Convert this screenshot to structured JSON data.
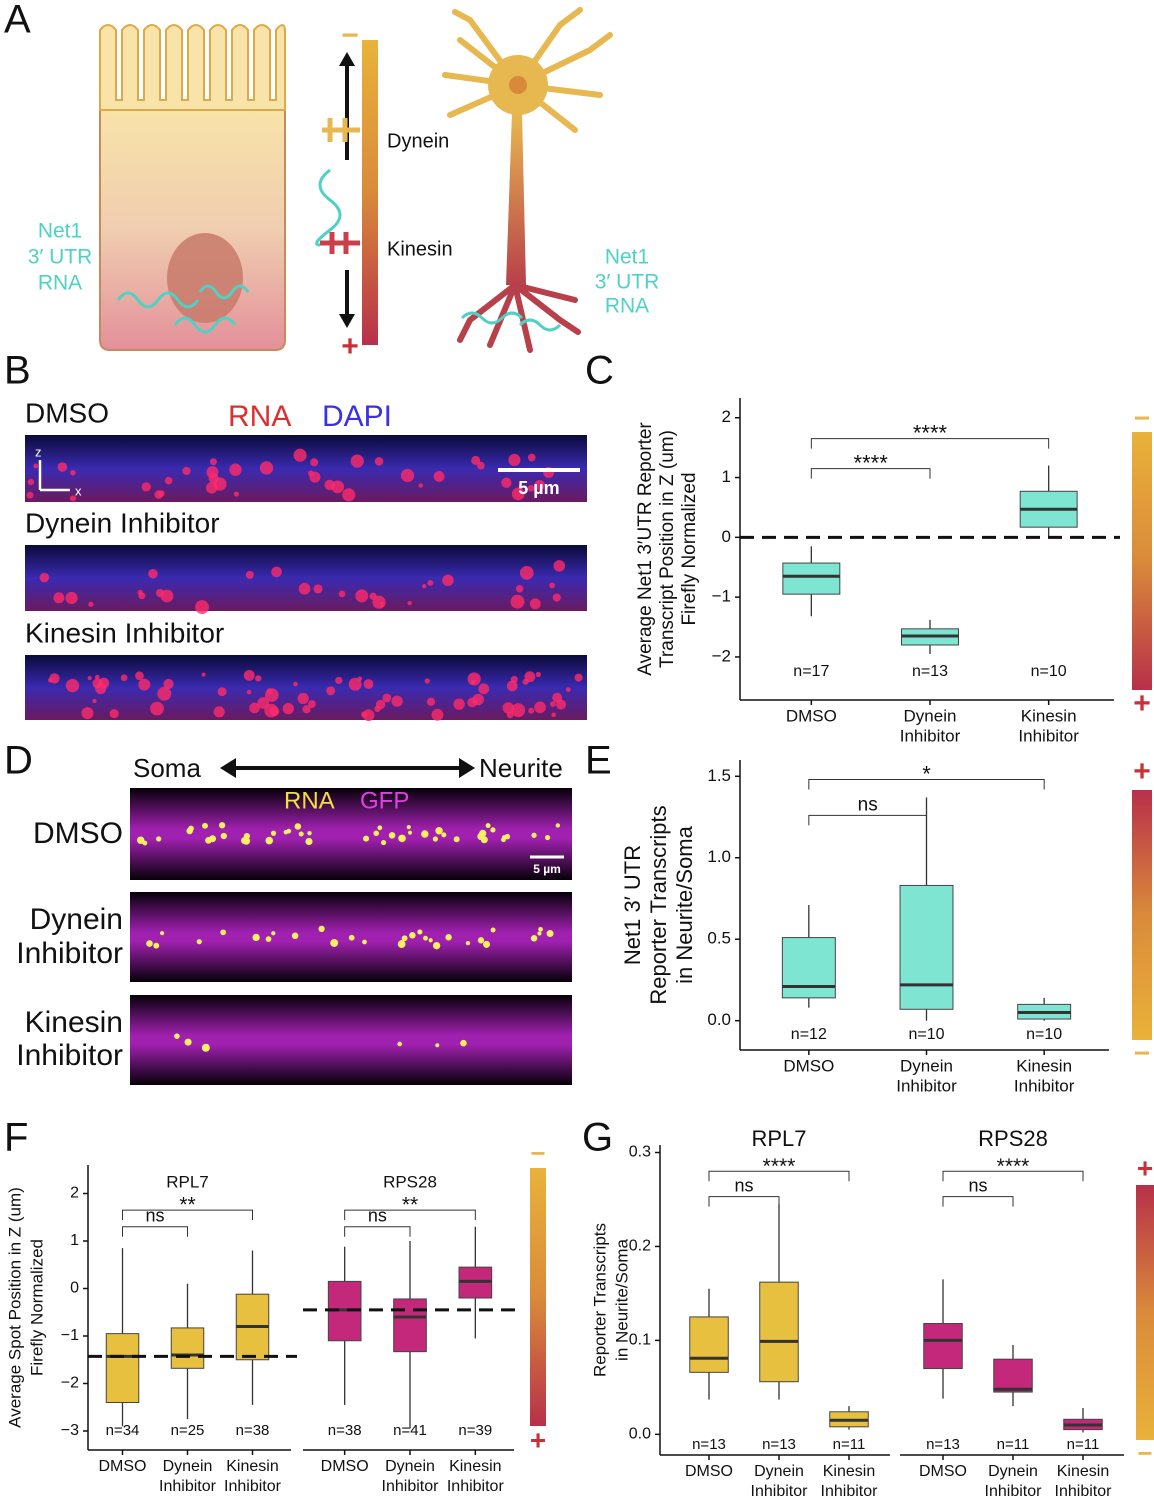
{
  "panel_labels": [
    "A",
    "B",
    "C",
    "D",
    "E",
    "F",
    "G"
  ],
  "panel_a": {
    "rna_label": [
      "Net1",
      "3′ UTR",
      "RNA"
    ],
    "motors": [
      "Dynein",
      "Kinesin"
    ]
  },
  "polarity": {
    "minus": "−",
    "plus": "+"
  },
  "panel_b": {
    "stains": [
      "RNA",
      "DAPI"
    ],
    "conditions": [
      "DMSO",
      "Dynein Inhibitor",
      "Kinesin Inhibitor"
    ],
    "axes": [
      "z",
      "x"
    ],
    "scale_bar": "5 µm"
  },
  "panel_d": {
    "soma": "Soma",
    "neurite": "Neurite",
    "stains": [
      "RNA",
      "GFP"
    ],
    "conditions": [
      [
        "DMSO"
      ],
      [
        "Dynein",
        "Inhibitor"
      ],
      [
        "Kinesin",
        "Inhibitor"
      ]
    ],
    "scale_bar": "5 µm"
  },
  "chart_data": [
    {
      "type": "box",
      "ylabel": [
        "Average Net1 3′UTR Reporter",
        "Transcript Position in Z (um)",
        "Firefly Normalized"
      ],
      "categories": [
        [
          "DMSO"
        ],
        [
          "Dynein",
          "Inhibitor"
        ],
        [
          "Kinesin",
          "Inhibitor"
        ]
      ],
      "boxes": [
        {
          "whislo": -1.32,
          "q1": -0.95,
          "med": -0.65,
          "q3": -0.43,
          "whishi": -0.15
        },
        {
          "whislo": -1.95,
          "q1": -1.8,
          "med": -1.65,
          "q3": -1.53,
          "whishi": -1.38
        },
        {
          "whislo": 0.0,
          "q1": 0.17,
          "med": 0.47,
          "q3": 0.77,
          "whishi": 1.2
        }
      ],
      "n_labels": [
        "n=17",
        "n=13",
        "n=10"
      ],
      "color": "#7fe5d3",
      "ylim": [
        -2.72,
        2.33
      ],
      "yticks": [
        {
          "value": -2,
          "label": "−2"
        },
        {
          "value": -1,
          "label": "−1"
        },
        0,
        1,
        2
      ],
      "hline": 0,
      "brackets": [
        {
          "pair": [
            0,
            1
          ],
          "y": 1.15,
          "label": "****"
        },
        {
          "pair": [
            0,
            2
          ],
          "y": 1.65,
          "label": "****"
        }
      ]
    },
    {
      "type": "box",
      "ylabel": [
        "Net1 3′ UTR",
        "Reporter Transcripts",
        "in Neurite/Soma"
      ],
      "categories": [
        [
          "DMSO"
        ],
        [
          "Dynein",
          "Inhibitor"
        ],
        [
          "Kinesin",
          "Inhibitor"
        ]
      ],
      "boxes": [
        {
          "whislo": 0.08,
          "q1": 0.14,
          "med": 0.21,
          "q3": 0.51,
          "whishi": 0.71
        },
        {
          "whislo": 0.0,
          "q1": 0.07,
          "med": 0.22,
          "q3": 0.83,
          "whishi": 1.37
        },
        {
          "whislo": 0.0,
          "q1": 0.01,
          "med": 0.05,
          "q3": 0.1,
          "whishi": 0.14
        }
      ],
      "n_labels": [
        "n=12",
        "n=10",
        "n=10"
      ],
      "color": "#7fe5d3",
      "ylim": [
        -0.18,
        1.6
      ],
      "yticks": [
        {
          "value": 0,
          "label": "0.0"
        },
        0.5,
        {
          "value": 1,
          "label": "1.0"
        },
        1.5
      ],
      "brackets": [
        {
          "pair": [
            0,
            1
          ],
          "y": 1.26,
          "label": "ns"
        },
        {
          "pair": [
            0,
            2
          ],
          "y": 1.48,
          "label": "*"
        }
      ]
    },
    {
      "type": "box",
      "title": "RPL7",
      "ylabel": [
        "Average Spot Position in Z (um)",
        "Firefly Normalized"
      ],
      "categories": [
        [
          "DMSO"
        ],
        [
          "Dynein",
          "Inhibitor"
        ],
        [
          "Kinesin",
          "Inhibitor"
        ]
      ],
      "boxes": [
        {
          "whislo": -2.9,
          "q1": -2.4,
          "med": -1.43,
          "q3": -0.95,
          "whishi": 0.85
        },
        {
          "whislo": -2.75,
          "q1": -1.68,
          "med": -1.4,
          "q3": -0.83,
          "whishi": 0.1
        },
        {
          "whislo": -2.45,
          "q1": -1.5,
          "med": -0.8,
          "q3": -0.12,
          "whishi": 0.8
        }
      ],
      "n_labels": [
        "n=34",
        "n=25",
        "n=38"
      ],
      "color": "#e8c040",
      "ylim": [
        -3.4,
        2.6
      ],
      "yticks": [
        {
          "value": -3,
          "label": "−3"
        },
        {
          "value": -2,
          "label": "−2"
        },
        {
          "value": -1,
          "label": "−1"
        },
        0,
        1,
        2
      ],
      "hline": -1.43,
      "brackets": [
        {
          "pair": [
            0,
            1
          ],
          "y": 1.3,
          "label": "ns"
        },
        {
          "pair": [
            0,
            2
          ],
          "y": 1.65,
          "label": "**"
        }
      ]
    },
    {
      "type": "box",
      "title": "RPS28",
      "categories": [
        [
          "DMSO"
        ],
        [
          "Dynein",
          "Inhibitor"
        ],
        [
          "Kinesin",
          "Inhibitor"
        ]
      ],
      "boxes": [
        {
          "whislo": -2.45,
          "q1": -1.1,
          "med": -0.45,
          "q3": 0.15,
          "whishi": 0.88
        },
        {
          "whislo": -2.95,
          "q1": -1.33,
          "med": -0.6,
          "q3": -0.22,
          "whishi": 1.0
        },
        {
          "whislo": -1.05,
          "q1": -0.2,
          "med": 0.15,
          "q3": 0.45,
          "whishi": 1.3
        }
      ],
      "n_labels": [
        "n=38",
        "n=41",
        "n=39"
      ],
      "color": "#c4287a",
      "ylim": [
        -3.4,
        2.6
      ],
      "hline": -0.45,
      "brackets": [
        {
          "pair": [
            0,
            1
          ],
          "y": 1.3,
          "label": "ns"
        },
        {
          "pair": [
            0,
            2
          ],
          "y": 1.65,
          "label": "**"
        }
      ]
    },
    {
      "type": "box",
      "title": "RPL7",
      "ylabel": [
        "Reporter Transcripts",
        "in Neurite/Soma"
      ],
      "categories": [
        [
          "DMSO"
        ],
        [
          "Dynein",
          "Inhibitor"
        ],
        [
          "Kinesin",
          "Inhibitor"
        ]
      ],
      "boxes": [
        {
          "whislo": 0.037,
          "q1": 0.066,
          "med": 0.081,
          "q3": 0.125,
          "whishi": 0.155
        },
        {
          "whislo": 0.037,
          "q1": 0.056,
          "med": 0.099,
          "q3": 0.162,
          "whishi": 0.245
        },
        {
          "whislo": 0.005,
          "q1": 0.008,
          "med": 0.015,
          "q3": 0.024,
          "whishi": 0.03
        }
      ],
      "n_labels": [
        "n=13",
        "n=13",
        "n=11"
      ],
      "color": "#e8c040",
      "ylim": [
        -0.022,
        0.308
      ],
      "yticks": [
        {
          "value": 0,
          "label": "0.0"
        },
        0.1,
        0.2,
        0.3
      ],
      "brackets": [
        {
          "pair": [
            0,
            1
          ],
          "y": 0.253,
          "label": "ns"
        },
        {
          "pair": [
            0,
            2
          ],
          "y": 0.28,
          "label": "****"
        }
      ]
    },
    {
      "type": "box",
      "title": "RPS28",
      "categories": [
        [
          "DMSO"
        ],
        [
          "Dynein",
          "Inhibitor"
        ],
        [
          "Kinesin",
          "Inhibitor"
        ]
      ],
      "boxes": [
        {
          "whislo": 0.038,
          "q1": 0.07,
          "med": 0.1,
          "q3": 0.118,
          "whishi": 0.165
        },
        {
          "whislo": 0.03,
          "q1": 0.045,
          "med": 0.048,
          "q3": 0.08,
          "whishi": 0.095
        },
        {
          "whislo": 0.002,
          "q1": 0.005,
          "med": 0.01,
          "q3": 0.016,
          "whishi": 0.028
        }
      ],
      "n_labels": [
        "n=13",
        "n=11",
        "n=11"
      ],
      "color": "#c4287a",
      "ylim": [
        -0.022,
        0.308
      ],
      "brackets": [
        {
          "pair": [
            0,
            1
          ],
          "y": 0.253,
          "label": "ns"
        },
        {
          "pair": [
            0,
            2
          ],
          "y": 0.28,
          "label": "****"
        }
      ]
    }
  ]
}
